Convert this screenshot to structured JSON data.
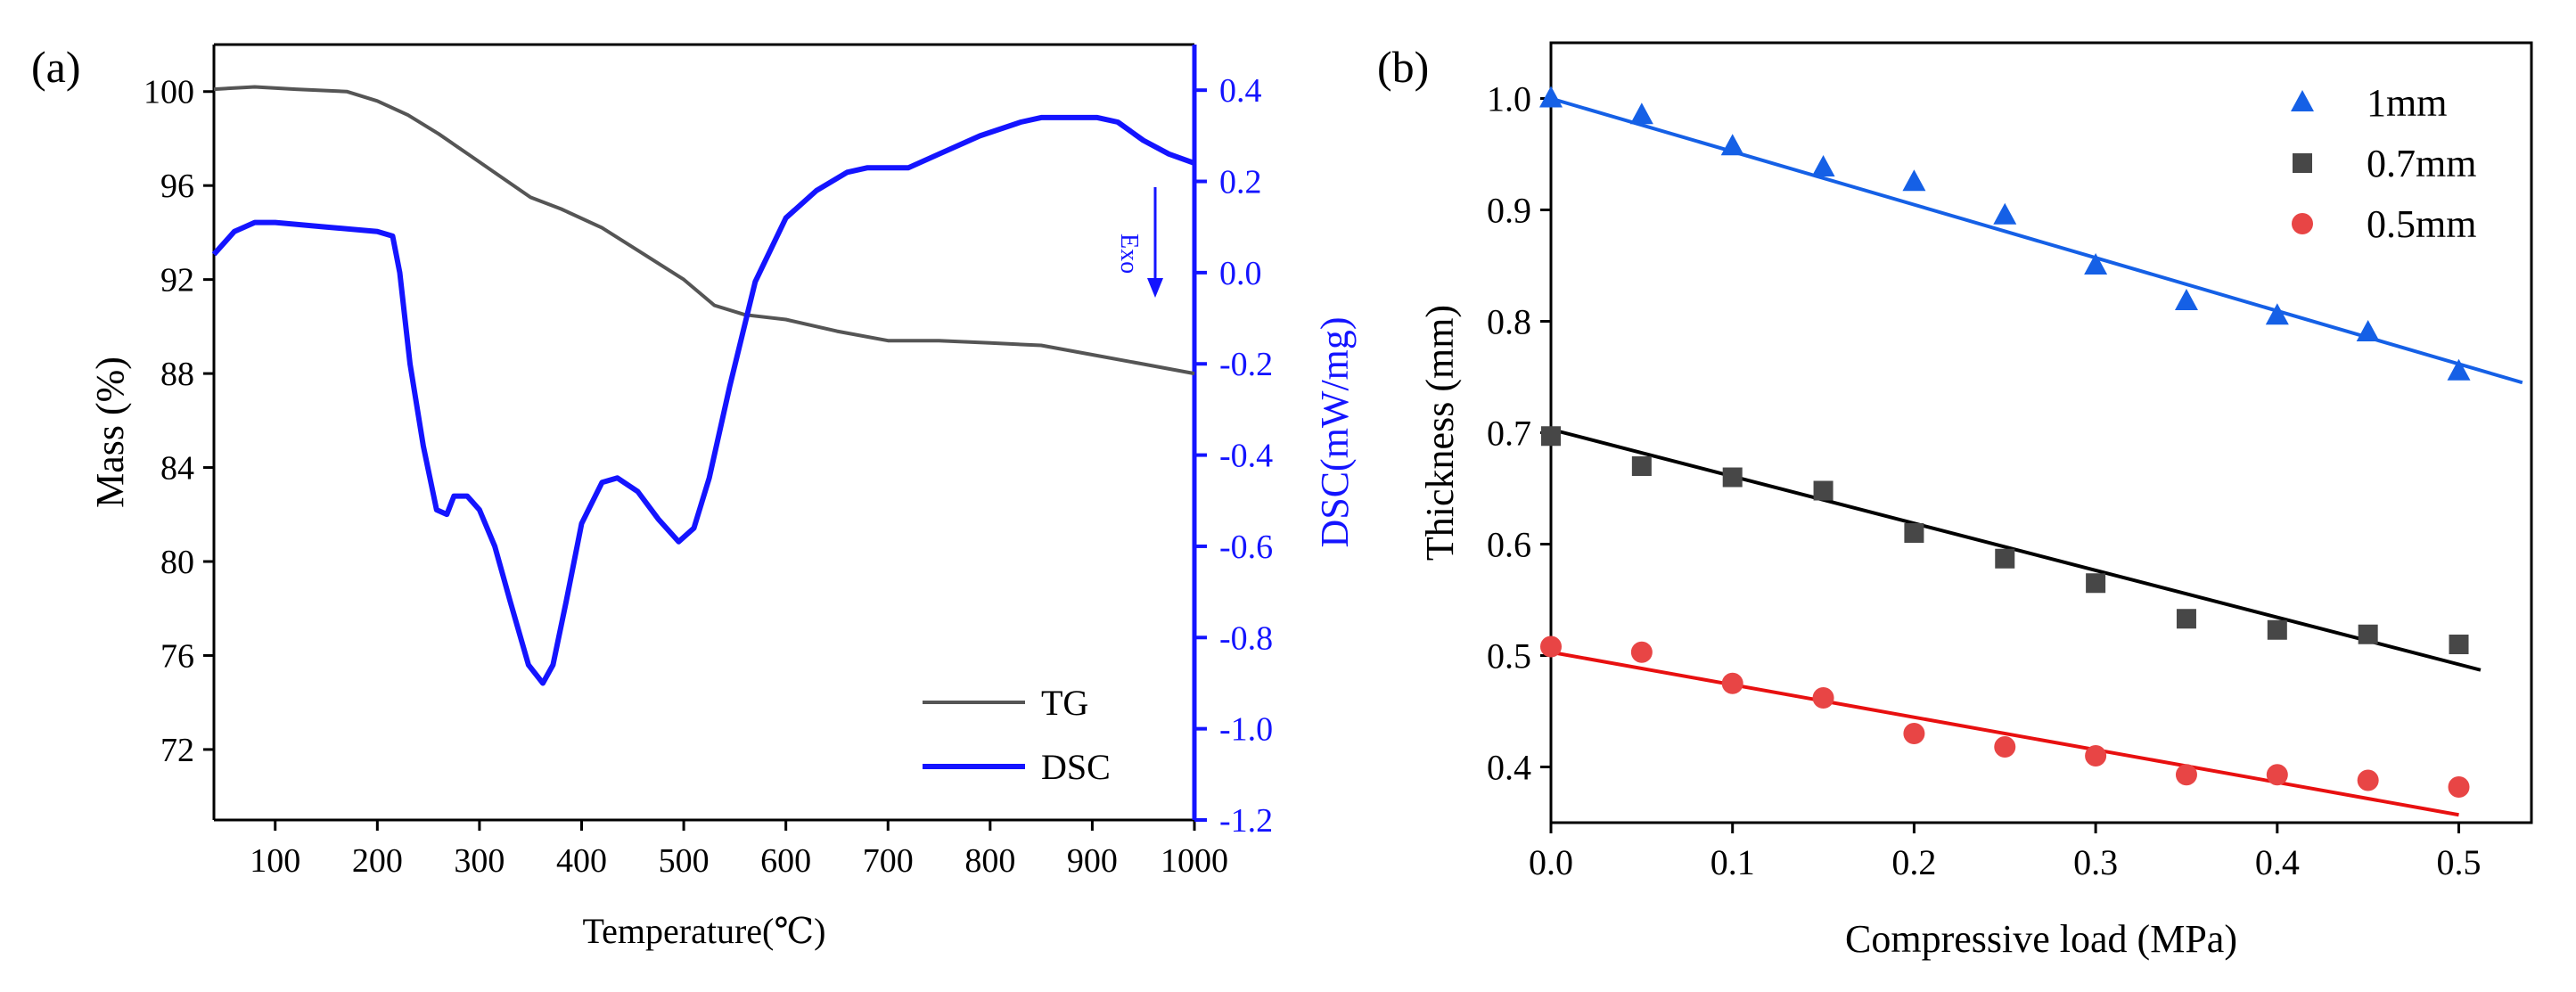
{
  "chart_data": [
    {
      "panel_label": "(a)",
      "type": "line",
      "xlabel": "Temperature(℃)",
      "ylabel": "Mass (%)",
      "y2label": "DSC(mW/mg)",
      "xlim": [
        40,
        1000
      ],
      "ylim": [
        69,
        102
      ],
      "y2lim": [
        -1.2,
        0.5
      ],
      "xticks": [
        100,
        200,
        300,
        400,
        500,
        600,
        700,
        800,
        900,
        1000
      ],
      "yticks": [
        72,
        76,
        80,
        84,
        88,
        92,
        96,
        100
      ],
      "y2ticks": [
        -1.2,
        -1.0,
        -0.8,
        -0.6,
        -0.4,
        -0.2,
        0.0,
        0.2,
        0.4
      ],
      "y2tick_labels": [
        "-1.2",
        "-1.0",
        "-0.8",
        "-0.6",
        "-0.4",
        "-0.2",
        "0.0",
        "0.2",
        "0.4"
      ],
      "annotation": "Exo",
      "series": [
        {
          "name": "TG",
          "axis": "left",
          "color": "#555555",
          "x": [
            40,
            80,
            120,
            170,
            200,
            230,
            260,
            290,
            320,
            350,
            380,
            420,
            460,
            500,
            530,
            560,
            600,
            650,
            700,
            750,
            800,
            850,
            900,
            950,
            1000
          ],
          "y": [
            100.1,
            100.2,
            100.1,
            100.0,
            99.6,
            99.0,
            98.2,
            97.3,
            96.4,
            95.5,
            95.0,
            94.2,
            93.1,
            92.0,
            90.9,
            90.5,
            90.3,
            89.8,
            89.4,
            89.4,
            89.3,
            89.2,
            88.8,
            88.4,
            88.0
          ]
        },
        {
          "name": "DSC",
          "axis": "right",
          "color": "#1414ff",
          "x": [
            40,
            60,
            80,
            100,
            150,
            200,
            215,
            222,
            232,
            245,
            258,
            268,
            275,
            288,
            300,
            315,
            330,
            348,
            362,
            372,
            385,
            400,
            420,
            435,
            455,
            475,
            495,
            510,
            525,
            545,
            570,
            600,
            630,
            660,
            680,
            700,
            720,
            750,
            790,
            830,
            850,
            880,
            905,
            925,
            950,
            975,
            1000
          ],
          "y": [
            0.04,
            0.09,
            0.11,
            0.11,
            0.1,
            0.09,
            0.08,
            0.0,
            -0.2,
            -0.38,
            -0.52,
            -0.53,
            -0.49,
            -0.49,
            -0.52,
            -0.6,
            -0.72,
            -0.86,
            -0.9,
            -0.86,
            -0.72,
            -0.55,
            -0.46,
            -0.45,
            -0.48,
            -0.54,
            -0.59,
            -0.56,
            -0.45,
            -0.25,
            -0.02,
            0.12,
            0.18,
            0.22,
            0.23,
            0.23,
            0.23,
            0.26,
            0.3,
            0.33,
            0.34,
            0.34,
            0.34,
            0.33,
            0.29,
            0.26,
            0.24
          ]
        }
      ],
      "legend": [
        "TG",
        "DSC"
      ],
      "legend_position": "bottom-right"
    },
    {
      "panel_label": "(b)",
      "type": "scatter",
      "xlabel": "Compressive load (MPa)",
      "ylabel": "Thickness (mm)",
      "xlim": [
        0.0,
        0.54
      ],
      "ylim": [
        0.35,
        1.05
      ],
      "xticks": [
        0.0,
        0.1,
        0.2,
        0.3,
        0.4,
        0.5
      ],
      "xtick_labels": [
        "0.0",
        "0.1",
        "0.2",
        "0.3",
        "0.4",
        "0.5"
      ],
      "yticks": [
        0.4,
        0.5,
        0.6,
        0.7,
        0.8,
        0.9,
        1.0
      ],
      "ytick_labels": [
        "0.4",
        "0.5",
        "0.6",
        "0.7",
        "0.8",
        "0.9",
        "1.0"
      ],
      "series": [
        {
          "name": "1mm",
          "marker": "triangle",
          "color": "#1560e6",
          "x": [
            0.0,
            0.05,
            0.1,
            0.15,
            0.2,
            0.25,
            0.3,
            0.35,
            0.4,
            0.45,
            0.5
          ],
          "y": [
            1.0,
            0.985,
            0.957,
            0.938,
            0.925,
            0.895,
            0.85,
            0.818,
            0.805,
            0.79,
            0.755
          ],
          "fit": {
            "x": [
              0.0,
              0.535
            ],
            "y": [
              1.0,
              0.745
            ],
            "color": "#1560e6"
          }
        },
        {
          "name": "0.7mm",
          "marker": "square",
          "color": "#474747",
          "x": [
            0.0,
            0.05,
            0.1,
            0.15,
            0.2,
            0.25,
            0.3,
            0.35,
            0.4,
            0.45,
            0.5
          ],
          "y": [
            0.697,
            0.67,
            0.66,
            0.648,
            0.61,
            0.587,
            0.565,
            0.533,
            0.523,
            0.519,
            0.51
          ],
          "fit": {
            "x": [
              0.0,
              0.512
            ],
            "y": [
              0.703,
              0.487
            ],
            "color": "#000000"
          }
        },
        {
          "name": "0.5mm",
          "marker": "circle",
          "color": "#e84545",
          "x": [
            0.0,
            0.05,
            0.1,
            0.15,
            0.2,
            0.25,
            0.3,
            0.35,
            0.4,
            0.45,
            0.5
          ],
          "y": [
            0.508,
            0.503,
            0.475,
            0.462,
            0.43,
            0.418,
            0.41,
            0.393,
            0.393,
            0.388,
            0.382
          ],
          "fit": {
            "x": [
              0.0,
              0.5
            ],
            "y": [
              0.503,
              0.357
            ],
            "color": "#e81010"
          }
        }
      ],
      "legend": [
        "1mm",
        "0.7mm",
        "0.5mm"
      ],
      "legend_position": "top-right"
    }
  ]
}
